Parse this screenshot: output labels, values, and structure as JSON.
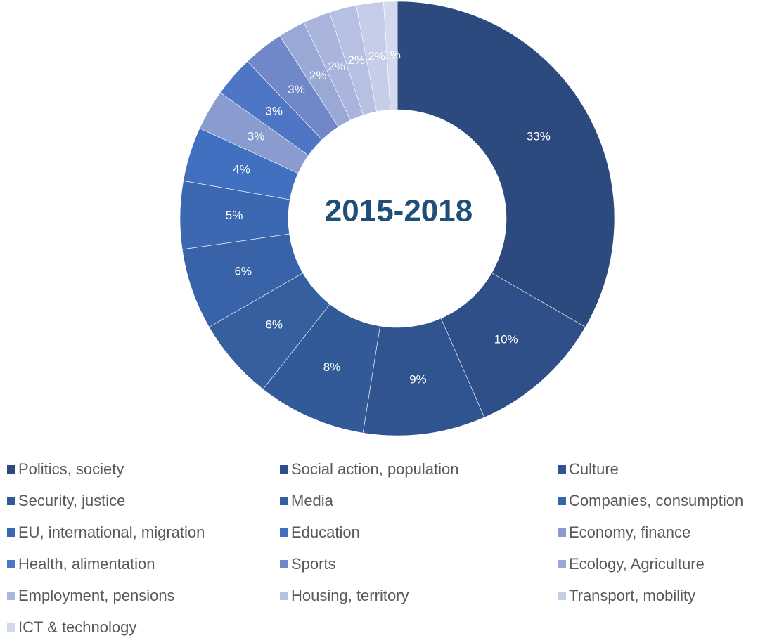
{
  "chart_data": {
    "type": "donut",
    "title": "2015-2018",
    "categories": [
      "Politics, society",
      "Social action, population",
      "Culture",
      "Security, justice",
      "Media",
      "Companies, consumption",
      "EU, international, migration",
      "Education",
      "Economy, finance",
      "Health, alimentation",
      "Sports",
      "Ecology, Agriculture",
      "Employment, pensions",
      "Housing, territory",
      "Transport, mobility",
      "ICT & technology"
    ],
    "values": [
      33,
      10,
      9,
      8,
      6,
      6,
      5,
      4,
      3,
      3,
      3,
      2,
      2,
      2,
      2,
      1
    ],
    "value_labels": [
      "33%",
      "10%",
      "9%",
      "8%",
      "6%",
      "6%",
      "5%",
      "4%",
      "3%",
      "3%",
      "3%",
      "2%",
      "2%",
      "2%",
      "2%",
      "1%"
    ],
    "colors": [
      "#2c4a7e",
      "#2e4f88",
      "#30548f",
      "#335a98",
      "#365fa0",
      "#3863a8",
      "#3b68b0",
      "#4170c0",
      "#8a9bd0",
      "#4f76c4",
      "#7088c8",
      "#9aa8d6",
      "#a9b5dc",
      "#b6c0e2",
      "#c5cde8",
      "#d3d9ee"
    ],
    "legend": "bottom"
  }
}
